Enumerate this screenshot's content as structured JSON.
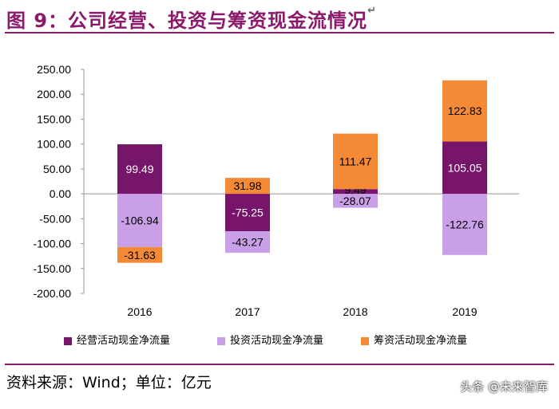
{
  "header": {
    "title": "图 9：公司经营、投资与筹资现金流情况",
    "return_glyph": "↵"
  },
  "chart_data": {
    "type": "bar",
    "stacked": true,
    "categories": [
      "2016",
      "2017",
      "2018",
      "2019"
    ],
    "series": [
      {
        "name": "经营活动现金净流量",
        "color": "#77156B",
        "values": [
          99.49,
          -75.25,
          9.49,
          105.05
        ]
      },
      {
        "name": "投资活动现金净流量",
        "color": "#C9A0E8",
        "values": [
          -106.94,
          -43.27,
          -28.07,
          -122.76
        ]
      },
      {
        "name": "筹资活动现金净流量",
        "color": "#F58A36",
        "values": [
          -31.63,
          31.98,
          111.47,
          122.83
        ]
      }
    ],
    "data_labels": [
      [
        "99.49",
        "-75.25",
        "9.49",
        "105.05"
      ],
      [
        "-106.94",
        "-43.27",
        "-28.07",
        "-122.76"
      ],
      [
        "-31.63",
        "31.98",
        "111.47",
        "122.83"
      ]
    ],
    "y_ticks": [
      "250.00",
      "200.00",
      "150.00",
      "100.00",
      "50.00",
      "0.00",
      "-50.00",
      "-100.00",
      "-150.00",
      "-200.00"
    ],
    "ylim": [
      -200,
      250
    ],
    "title": "",
    "xlabel": "",
    "ylabel": "",
    "grid": false,
    "legend_position": "bottom"
  },
  "footer": {
    "source": "资料来源：Wind；单位：亿元",
    "watermark": "头条 @未来智库"
  }
}
